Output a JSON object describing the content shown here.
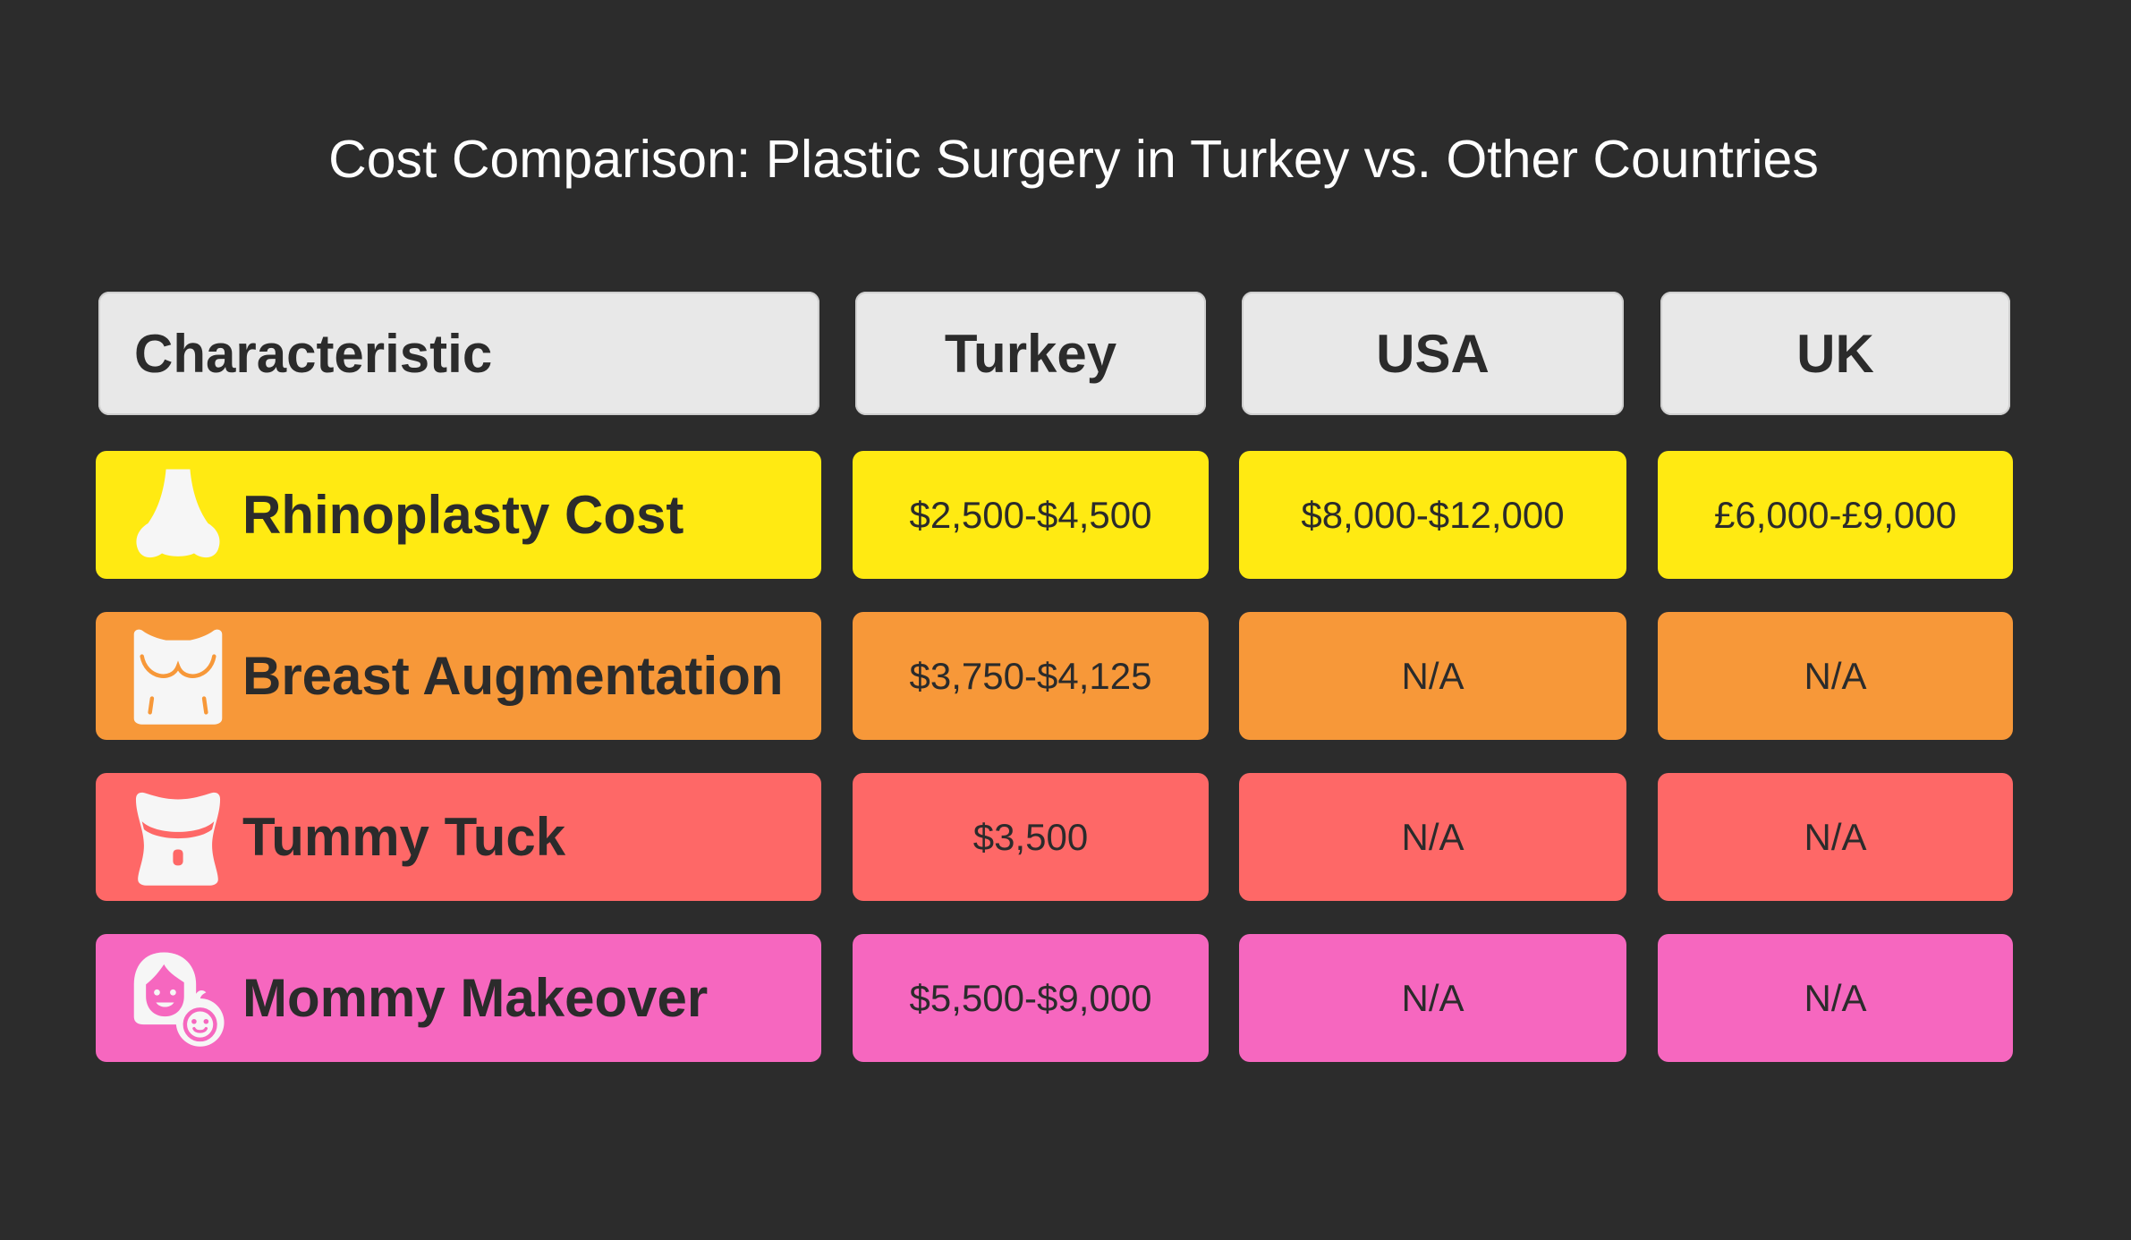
{
  "chart_data": {
    "type": "table",
    "title": "Cost Comparison: Plastic Surgery in Turkey vs. Other Countries",
    "columns": [
      "Characteristic",
      "Turkey",
      "USA",
      "UK"
    ],
    "rows": [
      {
        "label": "Rhinoplasty Cost",
        "icon": "nose-icon",
        "color": "#ffea12",
        "values": [
          "$2,500-$4,500",
          "$8,000-$12,000",
          "£6,000-£9,000"
        ]
      },
      {
        "label": "Breast Augmentation",
        "icon": "torso-icon",
        "color": "#f79839",
        "values": [
          "$3,750-$4,125",
          "N/A",
          "N/A"
        ]
      },
      {
        "label": "Tummy Tuck",
        "icon": "abdomen-icon",
        "color": "#fe6867",
        "values": [
          "$3,500",
          "N/A",
          "N/A"
        ]
      },
      {
        "label": "Mommy Makeover",
        "icon": "mother-baby-icon",
        "color": "#f667bf",
        "values": [
          "$5,500-$9,000",
          "N/A",
          "N/A"
        ]
      }
    ]
  },
  "colors": {
    "background": "#2c2c2c",
    "header": "#e8e8e8",
    "text": "#2b2b2b",
    "title": "#ffffff"
  }
}
